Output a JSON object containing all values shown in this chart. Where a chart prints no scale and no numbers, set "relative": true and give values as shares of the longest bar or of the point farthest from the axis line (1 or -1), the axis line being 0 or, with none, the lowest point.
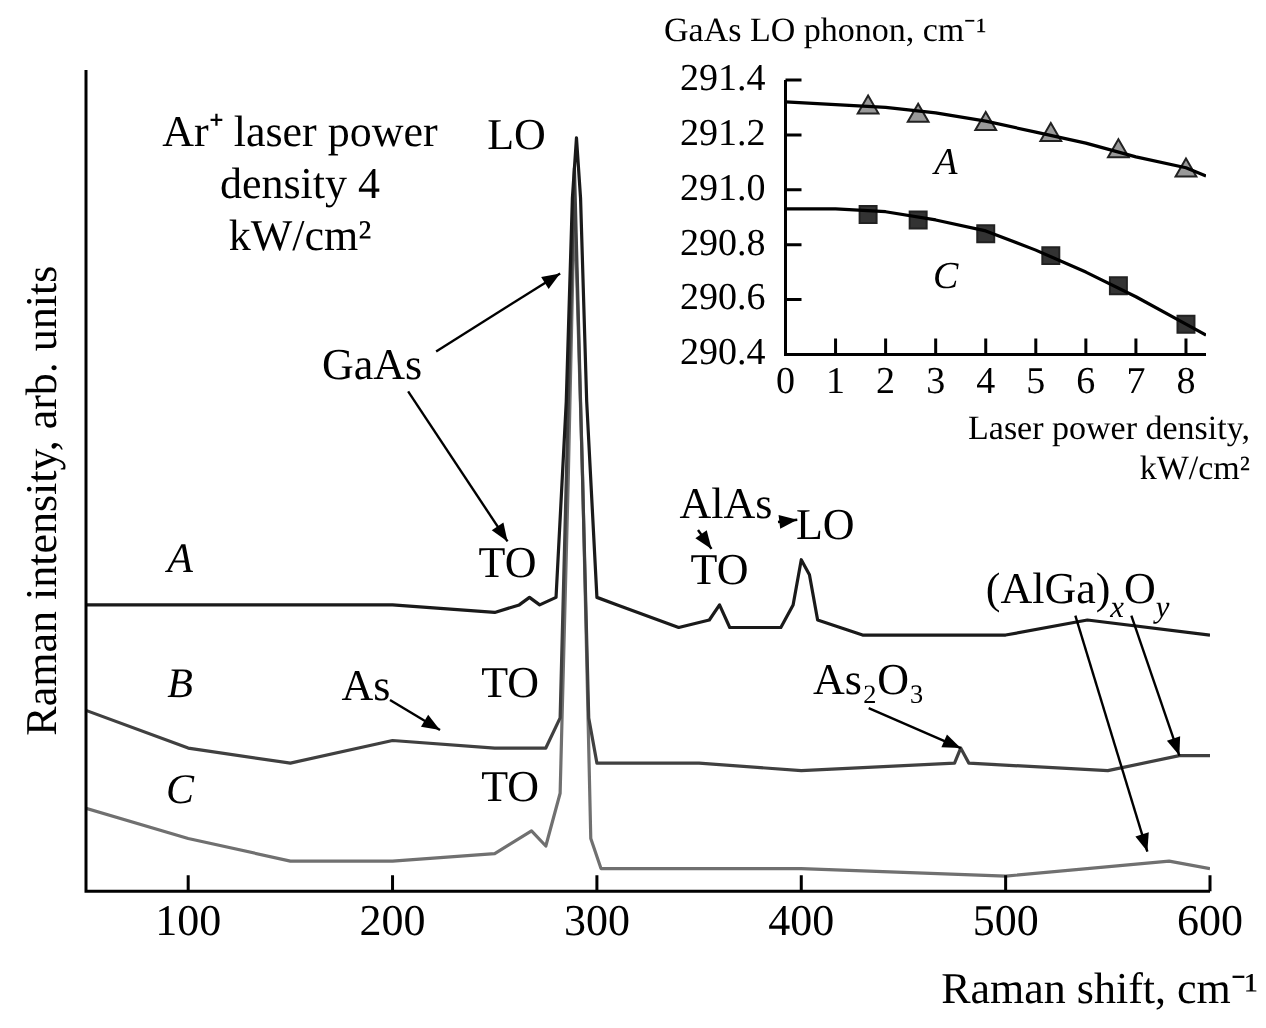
{
  "chart_data": [
    {
      "type": "line",
      "xlabel": "Raman shift, cm⁻¹",
      "ylabel": "Raman intensity, arb. units",
      "relative": true,
      "xlim": [
        50,
        600
      ],
      "xticks": [
        100,
        200,
        300,
        400,
        500,
        600
      ],
      "grid": false,
      "legend": false,
      "marker": "none",
      "series": [
        {
          "name": "A",
          "color": "#1a1a1a",
          "x": [
            50,
            100,
            150,
            200,
            250,
            262,
            267,
            272,
            280,
            285,
            288,
            290,
            292,
            295,
            300,
            310,
            340,
            355,
            360,
            365,
            390,
            396,
            400,
            404,
            408,
            430,
            500,
            540,
            600
          ],
          "values": [
            0.38,
            0.38,
            0.38,
            0.38,
            0.37,
            0.38,
            0.39,
            0.38,
            0.39,
            0.65,
            0.92,
            1,
            0.92,
            0.65,
            0.39,
            0.38,
            0.35,
            0.36,
            0.38,
            0.35,
            0.35,
            0.38,
            0.44,
            0.42,
            0.36,
            0.34,
            0.34,
            0.36,
            0.34
          ]
        },
        {
          "name": "B",
          "color": "#404040",
          "x": [
            50,
            100,
            150,
            200,
            250,
            275,
            282,
            286,
            289,
            292,
            296,
            300,
            350,
            400,
            475,
            478,
            482,
            550,
            585,
            600
          ],
          "values": [
            0.24,
            0.19,
            0.17,
            0.2,
            0.19,
            0.19,
            0.23,
            0.65,
            0.96,
            0.65,
            0.23,
            0.17,
            0.17,
            0.16,
            0.17,
            0.19,
            0.17,
            0.16,
            0.18,
            0.18
          ]
        },
        {
          "name": "C",
          "color": "#707070",
          "x": [
            50,
            100,
            150,
            200,
            250,
            268,
            275,
            282,
            286,
            289,
            293,
            297,
            302,
            400,
            500,
            580,
            600
          ],
          "values": [
            0.11,
            0.07,
            0.04,
            0.04,
            0.05,
            0.08,
            0.06,
            0.13,
            0.55,
            0.92,
            0.55,
            0.07,
            0.03,
            0.03,
            0.02,
            0.04,
            0.03
          ]
        }
      ],
      "annotations": [
        "Ar⁺ laser power density 4 kW/cm²",
        {
          "text": "LO",
          "x": 290,
          "y": 1
        },
        {
          "text": "GaAs",
          "x": 282,
          "y": 0.82
        },
        {
          "text": "TO",
          "x": 268,
          "y": 0.39
        },
        "AlAs",
        {
          "text": "TO",
          "x": 360,
          "y": 0.38
        },
        {
          "text": "LO",
          "x": 400,
          "y": 0.44
        },
        {
          "text": "TO",
          "x": 282,
          "y": 0.23
        },
        {
          "text": "TO",
          "x": 282,
          "y": 0.13
        },
        "As",
        {
          "text": "As₂O₃",
          "x": 478,
          "y": 0.19
        },
        {
          "text": "(AlGa)$_{x}$O$_{y}$",
          "x": 585,
          "y": 0.18
        }
      ]
    },
    {
      "type": "line",
      "xlabel": "Laser power density, kW/cm²",
      "ylabel": "GaAs LO phonon, cm⁻¹",
      "xlim": [
        0,
        8.4
      ],
      "xticks": [
        0,
        1,
        2,
        3,
        4,
        5,
        6,
        7,
        8
      ],
      "ylim": [
        290.4,
        291.4
      ],
      "yticks": [
        291.4,
        291.2,
        {
          "value": 291,
          "label": "291.0"
        },
        290.8,
        290.6,
        290.4
      ],
      "grid": false,
      "legend": false,
      "series": [
        {
          "type": "line",
          "marker": "none",
          "color": "#000000",
          "x": [
            0,
            1,
            2,
            3,
            4,
            5,
            6,
            7,
            8,
            8.4
          ],
          "values": [
            291.32,
            291.31,
            291.3,
            291.28,
            291.25,
            291.21,
            291.17,
            291.12,
            291.08,
            291.05
          ]
        },
        {
          "type": "line",
          "marker": "none",
          "color": "#000000",
          "x": [
            0,
            1,
            2,
            3,
            4,
            5,
            6,
            7,
            8,
            8.4
          ],
          "values": [
            290.93,
            290.93,
            290.92,
            290.89,
            290.85,
            290.78,
            290.7,
            290.61,
            290.51,
            290.47
          ]
        },
        {
          "type": "scatter",
          "name": "A",
          "marker": "triangle",
          "color": "#999999",
          "x": [
            1.65,
            2.65,
            4,
            5.3,
            6.65,
            8
          ],
          "values": [
            291.3,
            291.27,
            291.24,
            291.2,
            291.14,
            291.07
          ]
        },
        {
          "type": "scatter",
          "name": "C",
          "marker": "square",
          "color": "#333333",
          "x": [
            1.65,
            2.65,
            4,
            5.3,
            6.65,
            8
          ],
          "values": [
            290.91,
            290.89,
            290.84,
            290.76,
            290.65,
            290.51
          ]
        }
      ]
    }
  ]
}
